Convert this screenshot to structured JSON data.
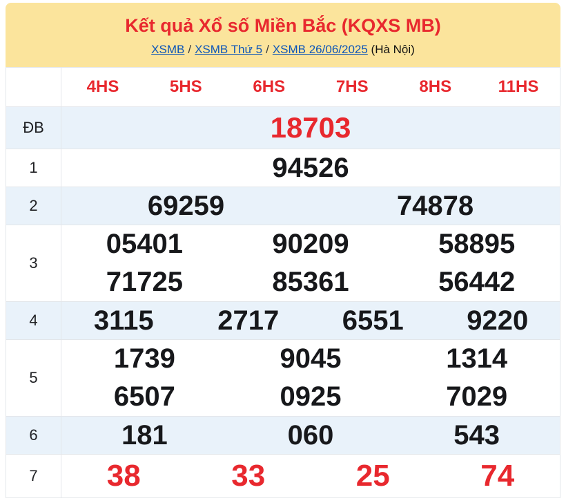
{
  "header": {
    "title": "Kết quả Xổ số Miền Bắc (KQXS MB)",
    "breadcrumb": {
      "links": [
        "XSMB",
        "XSMB Thứ 5",
        "XSMB 26/06/2025"
      ],
      "separator": "/",
      "suffix": "(Hà Nội)"
    }
  },
  "table": {
    "columns": [
      "4HS",
      "5HS",
      "6HS",
      "7HS",
      "8HS",
      "11HS"
    ],
    "rows": [
      {
        "label": "ĐB",
        "emphasis": "special",
        "lines": [
          [
            "18703"
          ]
        ]
      },
      {
        "label": "1",
        "emphasis": "none",
        "lines": [
          [
            "94526"
          ]
        ]
      },
      {
        "label": "2",
        "emphasis": "none",
        "lines": [
          [
            "69259",
            "74878"
          ]
        ]
      },
      {
        "label": "3",
        "emphasis": "none",
        "lines": [
          [
            "05401",
            "90209",
            "58895"
          ],
          [
            "71725",
            "85361",
            "56442"
          ]
        ]
      },
      {
        "label": "4",
        "emphasis": "none",
        "lines": [
          [
            "3115",
            "2717",
            "6551",
            "9220"
          ]
        ]
      },
      {
        "label": "5",
        "emphasis": "none",
        "lines": [
          [
            "1739",
            "9045",
            "1314"
          ],
          [
            "6507",
            "0925",
            "7029"
          ]
        ]
      },
      {
        "label": "6",
        "emphasis": "none",
        "lines": [
          [
            "181",
            "060",
            "543"
          ]
        ]
      },
      {
        "label": "7",
        "emphasis": "red",
        "lines": [
          [
            "38",
            "33",
            "25",
            "74"
          ]
        ]
      }
    ]
  },
  "colors": {
    "red": "#e8282e",
    "yellow": "#fbe49c",
    "blue": "#0c55b8",
    "rowblue": "#e9f2fa",
    "border": "#e3e6ea",
    "ink": "#17181b"
  }
}
